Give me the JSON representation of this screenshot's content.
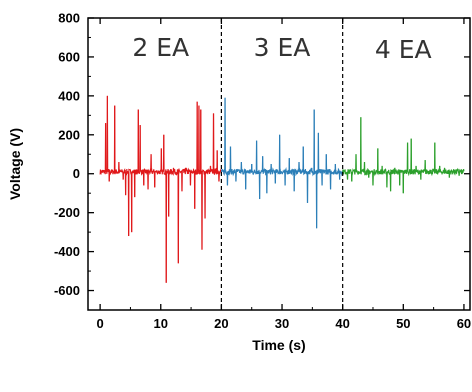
{
  "chart_data": {
    "type": "line",
    "title": "",
    "xlabel": "Time (s)",
    "ylabel": "Voltage (V)",
    "xlim": [
      -2,
      61
    ],
    "ylim": [
      -700,
      800
    ],
    "xticks": [
      0,
      10,
      20,
      30,
      40,
      50,
      60
    ],
    "yticks": [
      -600,
      -400,
      -200,
      0,
      200,
      400,
      600,
      800
    ],
    "grid": false,
    "legend": "none",
    "dividers": [
      20,
      40
    ],
    "region_labels": [
      {
        "text": "2 EA",
        "x": 10,
        "y": 650
      },
      {
        "text": "3 EA",
        "x": 30,
        "y": 650
      },
      {
        "text": "4 EA",
        "x": 50,
        "y": 640
      }
    ],
    "series": [
      {
        "color": "#e0191b",
        "x_range": [
          0,
          20
        ],
        "spikes": [
          [
            0.9,
            260
          ],
          [
            1.2,
            400
          ],
          [
            1.5,
            -40
          ],
          [
            2.4,
            350
          ],
          [
            3.1,
            60
          ],
          [
            3.8,
            -30
          ],
          [
            4.2,
            -110
          ],
          [
            4.7,
            -320
          ],
          [
            5.2,
            -300
          ],
          [
            5.7,
            -120
          ],
          [
            6.3,
            330
          ],
          [
            6.6,
            250
          ],
          [
            7.2,
            -60
          ],
          [
            7.9,
            -80
          ],
          [
            8.4,
            100
          ],
          [
            9.0,
            -70
          ],
          [
            10.1,
            130
          ],
          [
            10.5,
            200
          ],
          [
            10.9,
            -560
          ],
          [
            11.3,
            -220
          ],
          [
            12.1,
            30
          ],
          [
            12.9,
            -460
          ],
          [
            13.5,
            -90
          ],
          [
            14.1,
            30
          ],
          [
            14.9,
            -60
          ],
          [
            15.6,
            -180
          ],
          [
            16.0,
            370
          ],
          [
            16.3,
            350
          ],
          [
            16.6,
            330
          ],
          [
            16.8,
            -390
          ],
          [
            17.3,
            -230
          ],
          [
            18.2,
            40
          ],
          [
            18.7,
            310
          ],
          [
            19.3,
            120
          ],
          [
            19.6,
            -40
          ]
        ]
      },
      {
        "color": "#2c7fb8",
        "x_range": [
          20,
          40
        ],
        "spikes": [
          [
            20.6,
            390
          ],
          [
            21.0,
            -60
          ],
          [
            21.5,
            140
          ],
          [
            22.4,
            -40
          ],
          [
            23.3,
            60
          ],
          [
            24.0,
            -80
          ],
          [
            25.0,
            50
          ],
          [
            25.8,
            170
          ],
          [
            26.3,
            -130
          ],
          [
            26.8,
            90
          ],
          [
            27.5,
            -100
          ],
          [
            28.2,
            50
          ],
          [
            28.9,
            -50
          ],
          [
            29.6,
            200
          ],
          [
            30.5,
            -60
          ],
          [
            31.2,
            80
          ],
          [
            32.0,
            -90
          ],
          [
            32.8,
            60
          ],
          [
            33.5,
            140
          ],
          [
            34.2,
            -150
          ],
          [
            34.9,
            30
          ],
          [
            35.3,
            330
          ],
          [
            35.7,
            -280
          ],
          [
            36.0,
            210
          ],
          [
            36.6,
            -60
          ],
          [
            37.3,
            100
          ],
          [
            38.0,
            -80
          ],
          [
            38.8,
            50
          ],
          [
            39.5,
            -30
          ]
        ]
      },
      {
        "color": "#2ca02c",
        "x_range": [
          40,
          60
        ],
        "spikes": [
          [
            40.8,
            -30
          ],
          [
            41.5,
            -40
          ],
          [
            42.2,
            100
          ],
          [
            43.0,
            290
          ],
          [
            43.6,
            60
          ],
          [
            44.3,
            -20
          ],
          [
            45.0,
            -60
          ],
          [
            45.8,
            130
          ],
          [
            46.5,
            40
          ],
          [
            47.3,
            -70
          ],
          [
            47.9,
            -90
          ],
          [
            48.6,
            30
          ],
          [
            49.4,
            -60
          ],
          [
            50.0,
            -100
          ],
          [
            50.7,
            160
          ],
          [
            51.3,
            180
          ],
          [
            52.1,
            40
          ],
          [
            52.9,
            -30
          ],
          [
            53.6,
            70
          ],
          [
            54.4,
            20
          ],
          [
            55.2,
            160
          ],
          [
            56.0,
            40
          ],
          [
            56.8,
            30
          ],
          [
            57.6,
            -20
          ],
          [
            58.4,
            20
          ],
          [
            59.2,
            -10
          ]
        ]
      }
    ]
  }
}
